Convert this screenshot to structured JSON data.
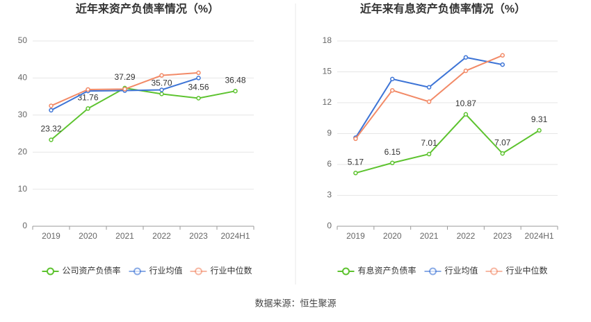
{
  "chart_data": [
    {
      "type": "line",
      "title": "近年来资产负债率情况（%）",
      "categories": [
        "2019",
        "2020",
        "2021",
        "2022",
        "2023",
        "2024H1"
      ],
      "ylim": [
        0,
        50
      ],
      "yticks": [
        0,
        10,
        20,
        30,
        40,
        50
      ],
      "grid": true,
      "series": [
        {
          "name": "公司资产负债率",
          "color": "#5dc32f",
          "values": [
            23.32,
            31.76,
            37.29,
            35.7,
            34.56,
            36.48
          ],
          "value_labels": [
            "23.32",
            "31.76",
            "37.29",
            "35.70",
            "34.56",
            "36.48"
          ]
        },
        {
          "name": "行业均值",
          "color": "#3d74d6",
          "values": [
            31.3,
            36.5,
            36.6,
            36.8,
            40.0,
            null
          ]
        },
        {
          "name": "行业中位数",
          "color": "#f28a67",
          "values": [
            32.5,
            36.9,
            37.0,
            40.7,
            41.4,
            null
          ]
        }
      ]
    },
    {
      "type": "line",
      "title": "近年来有息资产负债率情况（%）",
      "categories": [
        "2019",
        "2020",
        "2021",
        "2022",
        "2023",
        "2024H1"
      ],
      "ylim": [
        0,
        18
      ],
      "yticks": [
        0,
        3,
        6,
        9,
        12,
        15,
        18
      ],
      "grid": true,
      "series": [
        {
          "name": "有息资产负债率",
          "color": "#5dc32f",
          "values": [
            5.17,
            6.15,
            7.01,
            10.87,
            7.07,
            9.31
          ],
          "value_labels": [
            "5.17",
            "6.15",
            "7.01",
            "10.87",
            "7.07",
            "9.31"
          ]
        },
        {
          "name": "行业均值",
          "color": "#3d74d6",
          "values": [
            8.6,
            14.3,
            13.5,
            16.4,
            15.7,
            null
          ]
        },
        {
          "name": "行业中位数",
          "color": "#f28a67",
          "values": [
            8.5,
            13.2,
            12.1,
            15.1,
            16.6,
            null
          ]
        }
      ]
    }
  ],
  "source": "数据来源：恒生聚源"
}
